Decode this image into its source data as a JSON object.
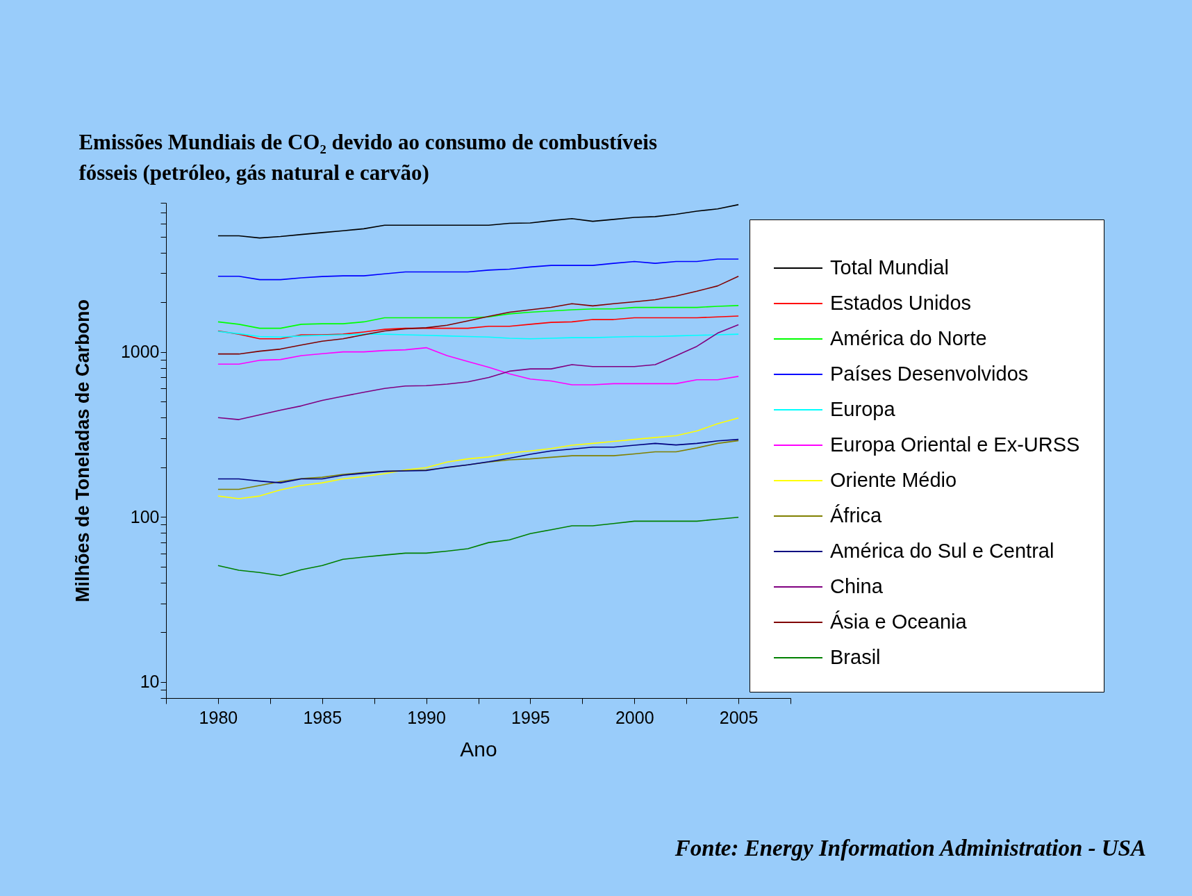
{
  "chart_data": {
    "type": "line",
    "title": [
      "Emissões Mundiais de CO₂ devido ao consumo de combustíveis",
      "fósseis (petróleo, gás natural e carvão)"
    ],
    "xlabel": "Ano",
    "ylabel": "Milhões de Toneladas de Carbono",
    "annotations": [
      "Fonte: Energy Information Administration - USA"
    ],
    "x": [
      1980,
      1981,
      1982,
      1983,
      1984,
      1985,
      1986,
      1987,
      1988,
      1989,
      1990,
      1991,
      1992,
      1993,
      1994,
      1995,
      1996,
      1997,
      1998,
      1999,
      2000,
      2001,
      2002,
      2003,
      2004,
      2005
    ],
    "series": [
      {
        "name": "Total Mundial",
        "color": "#000000",
        "values": [
          5050,
          5050,
          4900,
          5000,
          5140,
          5280,
          5420,
          5570,
          5850,
          5850,
          5850,
          5850,
          5850,
          5850,
          6010,
          6040,
          6240,
          6420,
          6180,
          6350,
          6530,
          6600,
          6820,
          7120,
          7350,
          7800
        ]
      },
      {
        "name": "Estados Unidos",
        "color": "#ff0000",
        "values": [
          1340,
          1280,
          1200,
          1200,
          1270,
          1270,
          1280,
          1320,
          1370,
          1390,
          1390,
          1390,
          1390,
          1430,
          1430,
          1470,
          1510,
          1520,
          1570,
          1570,
          1610,
          1610,
          1610,
          1610,
          1630,
          1650
        ]
      },
      {
        "name": "América do Norte",
        "color": "#00ff00",
        "values": [
          1520,
          1470,
          1390,
          1390,
          1470,
          1480,
          1480,
          1520,
          1610,
          1610,
          1610,
          1610,
          1610,
          1630,
          1700,
          1740,
          1770,
          1800,
          1820,
          1820,
          1860,
          1860,
          1860,
          1860,
          1890,
          1910
        ]
      },
      {
        "name": "Países Desenvolvidos",
        "color": "#0000ff",
        "values": [
          2870,
          2870,
          2740,
          2740,
          2810,
          2860,
          2890,
          2890,
          2970,
          3050,
          3050,
          3050,
          3050,
          3130,
          3170,
          3270,
          3340,
          3340,
          3340,
          3440,
          3530,
          3440,
          3530,
          3530,
          3650,
          3650
        ]
      },
      {
        "name": "Europa",
        "color": "#00ffff",
        "values": [
          1330,
          1290,
          1240,
          1230,
          1250,
          1260,
          1270,
          1280,
          1280,
          1270,
          1260,
          1250,
          1240,
          1230,
          1210,
          1200,
          1210,
          1220,
          1220,
          1230,
          1240,
          1240,
          1250,
          1260,
          1270,
          1280
        ]
      },
      {
        "name": "Europa Oriental e Ex-URSS",
        "color": "#ff00ff",
        "values": [
          843,
          843,
          890,
          899,
          949,
          975,
          1000,
          1000,
          1020,
          1030,
          1060,
          949,
          875,
          807,
          736,
          685,
          667,
          632,
          632,
          642,
          642,
          642,
          642,
          678,
          678,
          711
        ]
      },
      {
        "name": "Oriente Médio",
        "color": "#ffff00",
        "values": [
          134,
          129,
          134,
          146,
          155,
          161,
          170,
          176,
          183,
          193,
          199,
          215,
          225,
          231,
          244,
          251,
          260,
          272,
          279,
          287,
          295,
          303,
          311,
          332,
          367,
          398
        ]
      },
      {
        "name": "África",
        "color": "#808000",
        "values": [
          147,
          147,
          155,
          164,
          171,
          174,
          181,
          186,
          189,
          191,
          193,
          199,
          207,
          215,
          222,
          225,
          230,
          235,
          235,
          235,
          241,
          248,
          248,
          262,
          279,
          290
        ]
      },
      {
        "name": "América do Sul e Central",
        "color": "#000080",
        "values": [
          170,
          170,
          165,
          161,
          170,
          170,
          179,
          184,
          189,
          190,
          191,
          200,
          207,
          216,
          227,
          240,
          251,
          258,
          265,
          265,
          272,
          279,
          273,
          279,
          289,
          295
        ]
      },
      {
        "name": "China",
        "color": "#800080",
        "values": [
          400,
          389,
          416,
          444,
          471,
          508,
          539,
          569,
          601,
          621,
          624,
          638,
          659,
          700,
          764,
          789,
          789,
          837,
          815,
          815,
          815,
          837,
          948,
          1080,
          1300,
          1460
        ]
      },
      {
        "name": "Ásia e Oceania",
        "color": "#800000",
        "values": [
          971,
          971,
          1010,
          1040,
          1100,
          1160,
          1200,
          1270,
          1340,
          1380,
          1400,
          1450,
          1540,
          1640,
          1740,
          1800,
          1860,
          1960,
          1900,
          1960,
          2010,
          2070,
          2180,
          2330,
          2510,
          2870
        ]
      },
      {
        "name": "Brasil",
        "color": "#008000",
        "values": [
          50.8,
          47.6,
          46.1,
          44.1,
          47.9,
          50.8,
          55.4,
          57.2,
          58.8,
          60.4,
          60.4,
          62.1,
          64.2,
          70.0,
          72.7,
          79.3,
          83.7,
          88.4,
          88.4,
          91.3,
          94.3,
          94.3,
          94.3,
          94.3,
          96.9,
          99.6
        ]
      }
    ],
    "log": true,
    "xlim": [
      1977.5,
      2007.5
    ],
    "xticks": [
      {
        "value": 1977.5,
        "label": null
      },
      1980,
      {
        "value": 1982.5,
        "label": null
      },
      1985,
      {
        "value": 1987.5,
        "label": null
      },
      1990,
      {
        "value": 1992.5,
        "label": null
      },
      1995,
      {
        "value": 1997.5,
        "label": null
      },
      2000,
      {
        "value": 2002.5,
        "label": null
      },
      2005,
      {
        "value": 2007.5,
        "label": null
      }
    ],
    "ylim": [
      8,
      8000
    ],
    "yticks": [
      {
        "value": 8,
        "label": null
      },
      {
        "value": 9,
        "label": null
      },
      10,
      {
        "value": 20,
        "label": null
      },
      {
        "value": 30,
        "label": null
      },
      {
        "value": 40,
        "label": null
      },
      {
        "value": 50,
        "label": null
      },
      {
        "value": 60,
        "label": null
      },
      {
        "value": 70,
        "label": null
      },
      {
        "value": 80,
        "label": null
      },
      {
        "value": 90,
        "label": null
      },
      100,
      {
        "value": 200,
        "label": null
      },
      {
        "value": 300,
        "label": null
      },
      {
        "value": 400,
        "label": null
      },
      {
        "value": 500,
        "label": null
      },
      {
        "value": 600,
        "label": null
      },
      {
        "value": 700,
        "label": null
      },
      {
        "value": 800,
        "label": null
      },
      {
        "value": 900,
        "label": null
      },
      1000,
      {
        "value": 2000,
        "label": null
      },
      {
        "value": 3000,
        "label": null
      },
      {
        "value": 4000,
        "label": null
      },
      {
        "value": 5000,
        "label": null
      },
      {
        "value": 6000,
        "label": null
      },
      {
        "value": 7000,
        "label": null
      },
      {
        "value": 8000,
        "label": null
      }
    ],
    "grid": false,
    "legend": "right",
    "marker": "none",
    "line_style": "solid"
  }
}
